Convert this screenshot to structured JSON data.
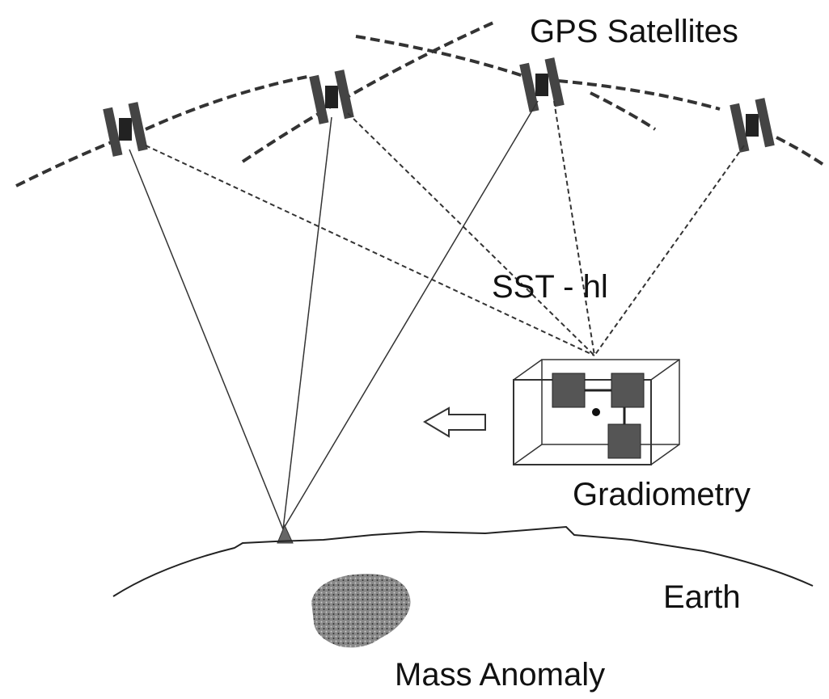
{
  "labels": {
    "gps": "GPS Satellites",
    "sst": "SST - hl",
    "gradiometry": "Gradiometry",
    "earth": "Earth",
    "mass": "Mass Anomaly"
  }
}
